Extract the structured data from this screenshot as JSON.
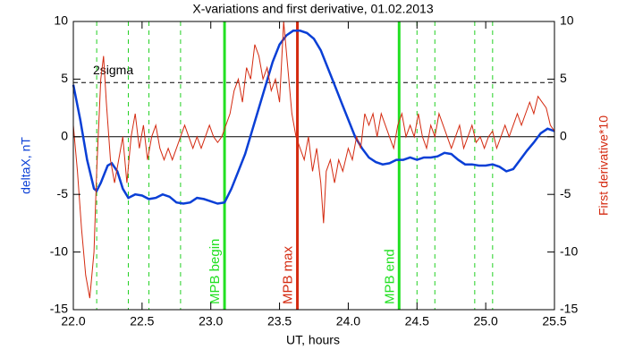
{
  "chart_data": {
    "type": "line",
    "title": "X-variations and first derivative, 01.02.2013",
    "x_label": "UT, hours",
    "y_label": "deltaX, nT",
    "y2_label": "First derivative*10",
    "xlim": [
      22,
      25.5
    ],
    "xticks": [
      {
        "value": 22,
        "label": "22.0"
      },
      22.5,
      {
        "value": 23,
        "label": "23.0"
      },
      23.5,
      {
        "value": 24,
        "label": "24.0"
      },
      24.5,
      {
        "value": 25,
        "label": "25.0"
      },
      25.5
    ],
    "ylim": [
      -15,
      10
    ],
    "yticks": [
      -15,
      -10,
      -5,
      0,
      5,
      10
    ],
    "y2lim": [
      -15,
      10
    ],
    "y2ticks": [
      -15,
      -10,
      -5,
      0,
      5,
      10
    ],
    "series": [
      {
        "name": "deltaX",
        "color": "#0a3fd6",
        "axis": "y",
        "x": [
          22.0,
          22.05,
          22.1,
          22.15,
          22.17,
          22.2,
          22.25,
          22.28,
          22.32,
          22.36,
          22.4,
          22.45,
          22.5,
          22.55,
          22.6,
          22.65,
          22.7,
          22.75,
          22.8,
          22.85,
          22.9,
          22.95,
          23.0,
          23.05,
          23.1,
          23.15,
          23.2,
          23.25,
          23.3,
          23.35,
          23.4,
          23.45,
          23.5,
          23.55,
          23.6,
          23.65,
          23.7,
          23.75,
          23.8,
          23.85,
          23.9,
          23.95,
          24.0,
          24.05,
          24.1,
          24.15,
          24.2,
          24.25,
          24.3,
          24.35,
          24.4,
          24.45,
          24.5,
          24.55,
          24.6,
          24.65,
          24.7,
          24.75,
          24.8,
          24.85,
          24.9,
          24.95,
          25.0,
          25.05,
          25.1,
          25.15,
          25.2,
          25.25,
          25.3,
          25.35,
          25.4,
          25.45,
          25.5
        ],
        "values": [
          4.5,
          1.5,
          -2,
          -4.5,
          -4.7,
          -4,
          -2.5,
          -2.3,
          -3,
          -4.5,
          -5.3,
          -5,
          -5.1,
          -5.4,
          -5.3,
          -5,
          -5.2,
          -5.7,
          -5.8,
          -5.7,
          -5.3,
          -5.4,
          -5.6,
          -5.8,
          -5.7,
          -4.5,
          -3,
          -1.5,
          0.5,
          2.5,
          4.5,
          6.5,
          8,
          8.8,
          9.2,
          9.2,
          9,
          8.5,
          7.5,
          6,
          4.5,
          3,
          1.5,
          0,
          -1,
          -1.8,
          -2.2,
          -2.4,
          -2.3,
          -2,
          -2,
          -1.8,
          -2,
          -1.8,
          -1.8,
          -1.7,
          -1.4,
          -1.5,
          -2,
          -2.4,
          -2.4,
          -2.5,
          -2.5,
          -2.4,
          -2.6,
          -3,
          -2.8,
          -2,
          -1.2,
          -0.5,
          0.3,
          0.7,
          0.5
        ]
      },
      {
        "name": "First derivative*10",
        "color": "#d42a10",
        "axis": "y2",
        "x": [
          22.0,
          22.03,
          22.06,
          22.09,
          22.12,
          22.15,
          22.17,
          22.2,
          22.22,
          22.24,
          22.27,
          22.3,
          22.33,
          22.36,
          22.39,
          22.42,
          22.45,
          22.48,
          22.51,
          22.54,
          22.57,
          22.6,
          22.63,
          22.66,
          22.69,
          22.72,
          22.75,
          22.78,
          22.81,
          22.84,
          22.87,
          22.9,
          22.93,
          22.96,
          22.99,
          23.02,
          23.05,
          23.08,
          23.11,
          23.14,
          23.17,
          23.2,
          23.23,
          23.26,
          23.29,
          23.32,
          23.35,
          23.38,
          23.41,
          23.44,
          23.47,
          23.5,
          23.53,
          23.56,
          23.59,
          23.62,
          23.65,
          23.68,
          23.71,
          23.74,
          23.77,
          23.8,
          23.82,
          23.84,
          23.87,
          23.9,
          23.93,
          23.96,
          24.0,
          24.03,
          24.06,
          24.09,
          24.12,
          24.15,
          24.18,
          24.21,
          24.24,
          24.27,
          24.3,
          24.33,
          24.36,
          24.39,
          24.42,
          24.45,
          24.48,
          24.51,
          24.54,
          24.57,
          24.6,
          24.63,
          24.66,
          24.69,
          24.72,
          24.75,
          24.78,
          24.81,
          24.84,
          24.87,
          24.9,
          24.93,
          24.96,
          24.99,
          25.02,
          25.05,
          25.08,
          25.11,
          25.14,
          25.17,
          25.2,
          25.23,
          25.26,
          25.29,
          25.32,
          25.35,
          25.38,
          25.41,
          25.44,
          25.47,
          25.5
        ],
        "values": [
          1,
          -3,
          -8,
          -12,
          -14,
          -10,
          -3,
          5,
          7,
          3,
          -2,
          -4,
          -2,
          0,
          -4,
          0,
          2,
          -1,
          1,
          -2,
          0,
          1,
          -1,
          -2,
          -1,
          -2,
          -1,
          0,
          1,
          0,
          -1,
          0,
          -1,
          0,
          1,
          0,
          -0.5,
          0,
          1,
          2,
          4,
          5,
          3,
          6,
          5,
          8,
          7,
          5,
          6,
          4,
          5,
          3,
          10,
          6,
          2,
          0,
          -1,
          -2,
          0,
          -3,
          -1,
          -4,
          -7.5,
          -3,
          -2,
          -4,
          -2,
          -3,
          -1,
          -2,
          0,
          -1,
          2,
          1,
          2,
          0,
          2,
          1,
          0,
          -1,
          1,
          2,
          0,
          1,
          0,
          2,
          0,
          -1,
          1,
          0,
          2,
          1,
          0,
          -1,
          0,
          1,
          -1,
          0,
          1,
          -0.5,
          0,
          -1,
          0,
          0.5,
          -1,
          0,
          1,
          0,
          1,
          2,
          1,
          2,
          3,
          2,
          3.5,
          3,
          2.5,
          1,
          0.5
        ]
      }
    ],
    "hlines": [
      {
        "value": 4.7,
        "label": "2sigma",
        "style": "dashed",
        "color": "#000000"
      },
      {
        "value": 0,
        "style": "solid",
        "color": "#000000"
      }
    ],
    "vlines": [
      {
        "value": 22.17,
        "style": "dashed",
        "color": "#22d022"
      },
      {
        "value": 22.4,
        "style": "dashed",
        "color": "#22d022"
      },
      {
        "value": 22.55,
        "style": "dashed",
        "color": "#22d022"
      },
      {
        "value": 22.78,
        "style": "dashed",
        "color": "#22d022"
      },
      {
        "value": 23.1,
        "style": "solid",
        "color": "#22e022",
        "label": "MPB begin"
      },
      {
        "value": 23.63,
        "style": "solid",
        "color": "#d42a10",
        "label": "MPB max"
      },
      {
        "value": 24.37,
        "style": "solid",
        "color": "#22e022",
        "label": "MPB end"
      },
      {
        "value": 24.5,
        "style": "dashed",
        "color": "#22d022"
      },
      {
        "value": 24.63,
        "style": "dashed",
        "color": "#22d022"
      },
      {
        "value": 24.92,
        "style": "dashed",
        "color": "#22d022"
      },
      {
        "value": 25.05,
        "style": "dashed",
        "color": "#22d022"
      }
    ]
  }
}
